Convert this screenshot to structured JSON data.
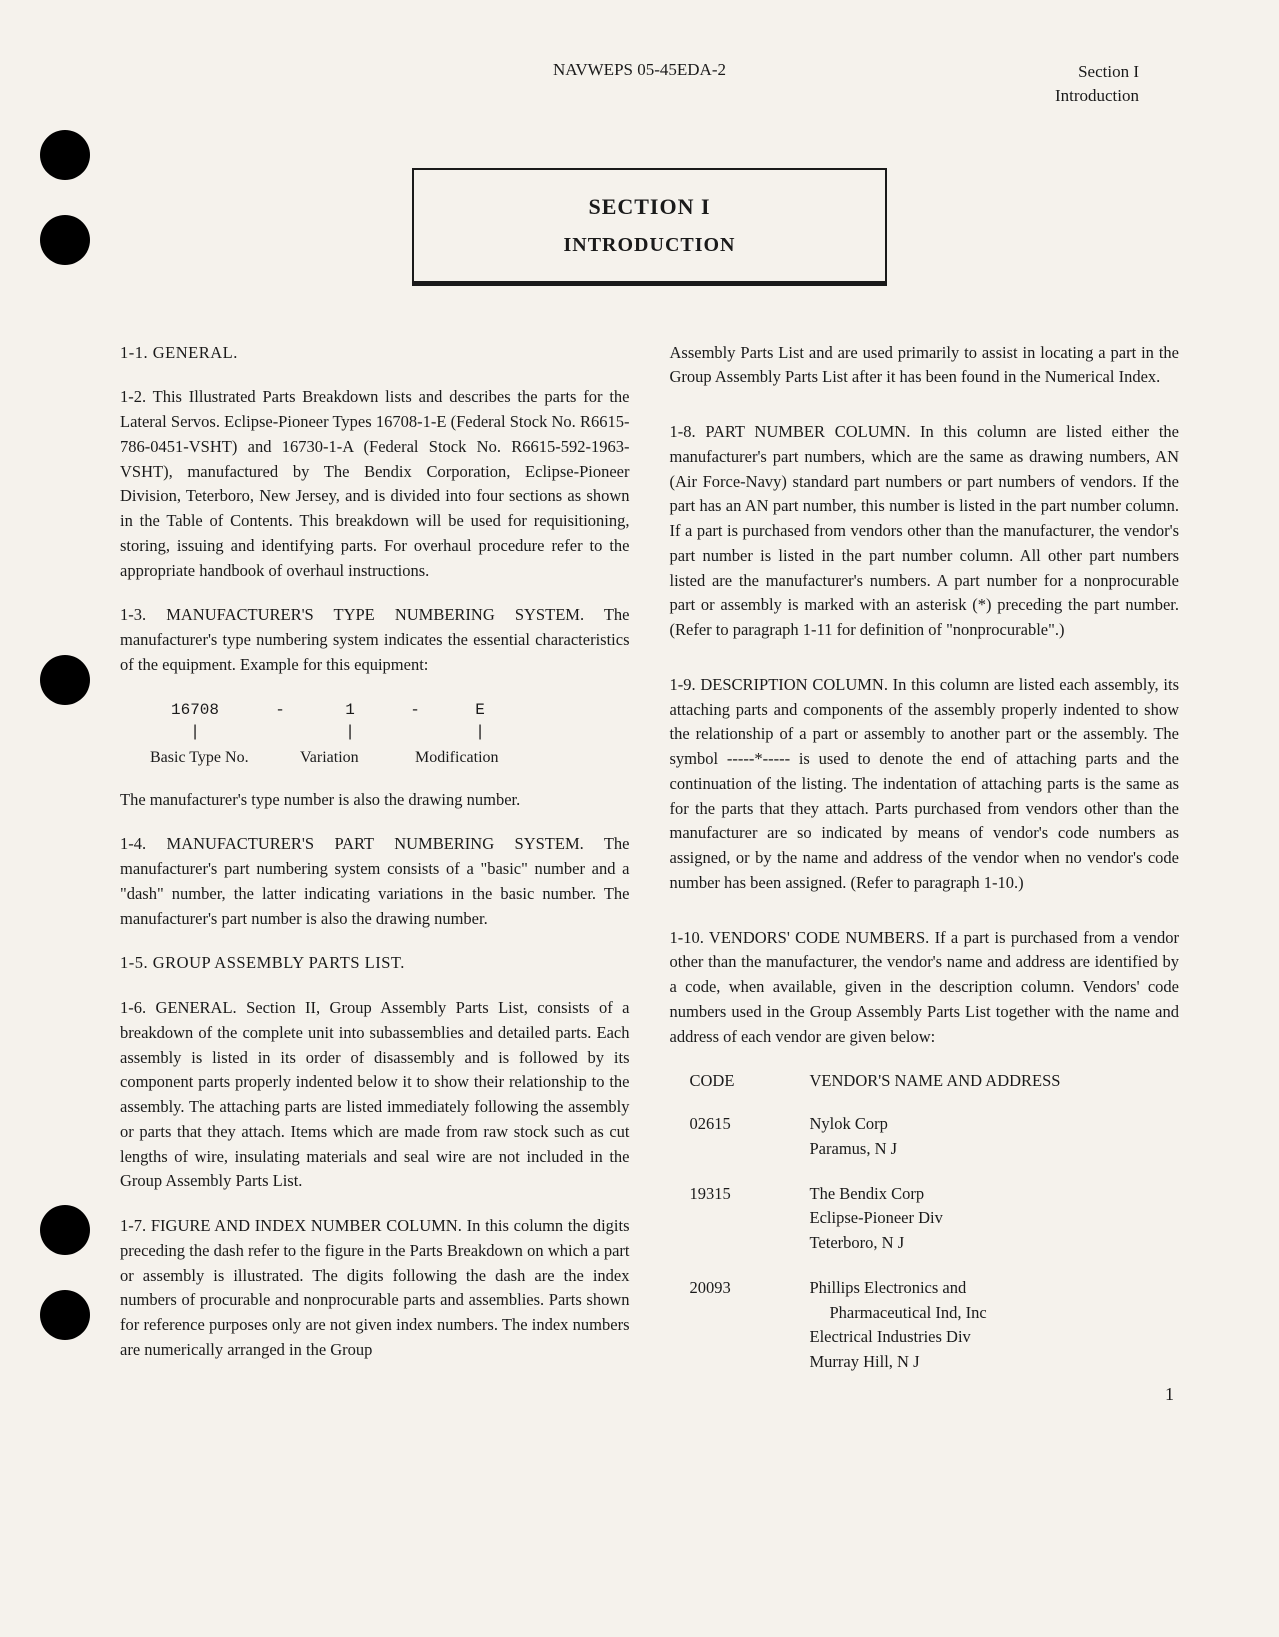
{
  "header": {
    "center": "NAVWEPS 05-45EDA-2",
    "right_line1": "Section I",
    "right_line2": "Introduction"
  },
  "title": {
    "line1": "SECTION I",
    "line2": "INTRODUCTION"
  },
  "type_diagram": {
    "value1": "16708",
    "dash1": "-",
    "value2": "1",
    "dash2": "-",
    "value3": "E",
    "label1": "Basic Type No.",
    "label2": "Variation",
    "label3": "Modification"
  },
  "left_column": {
    "p1_heading": "1-1.  GENERAL.",
    "p2": "1-2.  This Illustrated Parts Breakdown lists and describes the parts for the Lateral Servos. Eclipse-Pioneer Types 16708-1-E (Federal Stock No. R6615-786-0451-VSHT) and 16730-1-A (Federal Stock No. R6615-592-1963-VSHT), manufactured by The Bendix Corporation, Eclipse-Pioneer Division, Teterboro, New Jersey, and is divided into four sections as shown in the Table of Contents. This breakdown will be used for requisitioning, storing, issuing and identifying parts. For overhaul procedure refer to the appropriate handbook of overhaul instructions.",
    "p3": "1-3.  MANUFACTURER'S TYPE NUMBERING SYSTEM.  The manufacturer's type numbering system indicates the essential characteristics of the equipment.  Example for this equipment:",
    "p4": "The manufacturer's type number is also the drawing number.",
    "p5": "1-4.  MANUFACTURER'S PART NUMBERING SYSTEM.  The manufacturer's part numbering system consists of a \"basic\" number and a \"dash\" number, the latter indicating variations in the basic number. The manufacturer's part number is also the drawing number.",
    "p6_heading": "1-5.  GROUP ASSEMBLY PARTS LIST.",
    "p7": "1-6.  GENERAL.  Section II, Group Assembly Parts List, consists of a breakdown of the complete unit into subassemblies and detailed parts. Each assembly is listed in its order of disassembly and is followed by its component parts properly indented below it to show their relationship to the assembly. The attaching parts are listed immediately following the assembly or parts that they attach. Items which are made from raw stock such as cut lengths of wire, insulating materials and seal wire are not included in the Group Assembly Parts List.",
    "p8": "1-7.  FIGURE AND INDEX NUMBER COLUMN.  In this column the digits preceding the dash refer to the figure in the Parts Breakdown on which a part or assembly is illustrated. The digits following the dash are the index numbers of procurable and nonprocurable parts and assemblies. Parts shown for reference purposes only are not given index numbers. The index numbers are numerically arranged in the Group"
  },
  "right_column": {
    "p1": "Assembly Parts List and are used primarily to assist in locating a part in the Group Assembly Parts List after it has been found in the Numerical Index.",
    "p2": "1-8.  PART NUMBER COLUMN.  In this column are listed either the manufacturer's part numbers, which are the same as drawing numbers, AN (Air Force-Navy) standard part numbers or part numbers of vendors. If the part has an AN part number, this number is listed in the part number column. If a part is purchased from vendors other than the manufacturer, the vendor's part number is listed in the part number column. All other part numbers listed are the manufacturer's numbers. A part number for a nonprocurable part or assembly is marked with an asterisk (*) preceding the part number. (Refer to paragraph 1-11 for definition of \"nonprocurable\".)",
    "p3": "1-9.  DESCRIPTION COLUMN.  In this column are listed each assembly, its attaching parts and components of the assembly properly indented to show the relationship of a part or assembly to another part or the assembly. The symbol -----*----- is used to denote the end of attaching parts and the continuation of the listing. The indentation of attaching parts is the same as for the parts that they attach. Parts purchased from vendors other than the manufacturer are so indicated by means of vendor's code numbers as assigned, or by the name and address of the vendor when no vendor's code number has been assigned. (Refer to paragraph 1-10.)",
    "p4": "1-10.  VENDORS' CODE NUMBERS.  If a part is purchased from a vendor other than the manufacturer, the vendor's name and address are identified by a code, when available, given in the description column. Vendors' code numbers used in the Group Assembly Parts List together with the name and address of each vendor are given below:",
    "vendor_header_code": "CODE",
    "vendor_header_name": "VENDOR'S NAME AND ADDRESS"
  },
  "vendors": [
    {
      "code": "02615",
      "lines": [
        "Nylok Corp",
        "Paramus, N J"
      ]
    },
    {
      "code": "19315",
      "lines": [
        "The Bendix Corp",
        "Eclipse-Pioneer Div",
        "Teterboro, N J"
      ]
    },
    {
      "code": "20093",
      "lines": [
        "Phillips Electronics and",
        "  Pharmaceutical Ind, Inc",
        "Electrical Industries Div",
        "Murray Hill, N J"
      ]
    }
  ],
  "page_number": "1"
}
